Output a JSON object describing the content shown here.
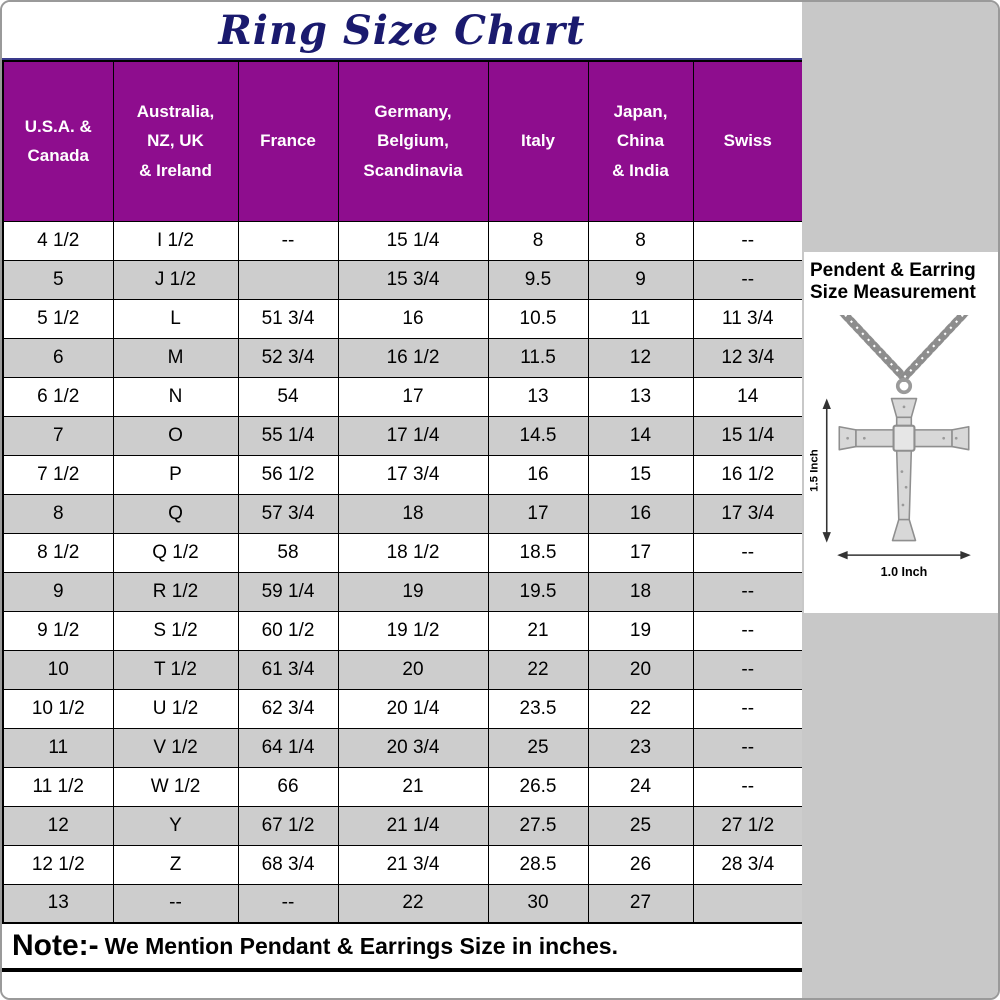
{
  "chart_data": {
    "type": "table",
    "title": "Ring Size Chart",
    "columns": [
      "U.S.A. &\nCanada",
      "Australia,\nNZ, UK\n& Ireland",
      "France",
      "Germany,\nBelgium,\nScandinavia",
      "Italy",
      "Japan,\nChina\n& India",
      "Swiss"
    ],
    "rows": [
      [
        "4 1/2",
        "I 1/2",
        "--",
        "15 1/4",
        "8",
        "8",
        "--"
      ],
      [
        "5",
        "J 1/2",
        "",
        "15 3/4",
        "9.5",
        "9",
        "--"
      ],
      [
        "5 1/2",
        "L",
        "51 3/4",
        "16",
        "10.5",
        "11",
        "11 3/4"
      ],
      [
        "6",
        "M",
        "52 3/4",
        "16 1/2",
        "11.5",
        "12",
        "12 3/4"
      ],
      [
        "6 1/2",
        "N",
        "54",
        "17",
        "13",
        "13",
        "14"
      ],
      [
        "7",
        "O",
        "55 1/4",
        "17 1/4",
        "14.5",
        "14",
        "15 1/4"
      ],
      [
        "7 1/2",
        "P",
        "56 1/2",
        "17 3/4",
        "16",
        "15",
        "16 1/2"
      ],
      [
        "8",
        "Q",
        "57 3/4",
        "18",
        "17",
        "16",
        "17 3/4"
      ],
      [
        "8 1/2",
        "Q 1/2",
        "58",
        "18 1/2",
        "18.5",
        "17",
        "--"
      ],
      [
        "9",
        "R 1/2",
        "59 1/4",
        "19",
        "19.5",
        "18",
        "--"
      ],
      [
        "9 1/2",
        "S 1/2",
        "60 1/2",
        "19 1/2",
        "21",
        "19",
        "--"
      ],
      [
        "10",
        "T 1/2",
        "61 3/4",
        "20",
        "22",
        "20",
        "--"
      ],
      [
        "10 1/2",
        "U 1/2",
        "62 3/4",
        "20 1/4",
        "23.5",
        "22",
        "--"
      ],
      [
        "11",
        "V 1/2",
        "64 1/4",
        "20 3/4",
        "25",
        "23",
        "--"
      ],
      [
        "11 1/2",
        "W 1/2",
        "66",
        "21",
        "26.5",
        "24",
        "--"
      ],
      [
        "12",
        "Y",
        "67 1/2",
        "21 1/4",
        "27.5",
        "25",
        "27 1/2"
      ],
      [
        "12 1/2",
        "Z",
        "68 3/4",
        "21 3/4",
        "28.5",
        "26",
        "28 3/4"
      ],
      [
        "13",
        "--",
        "--",
        "22",
        "30",
        "27",
        ""
      ]
    ]
  },
  "side_panel": {
    "heading_line1": "Pendent & Earring",
    "heading_line2": "Size Measurement",
    "height_label": "1.5 Inch",
    "width_label": "1.0 Inch"
  },
  "note": {
    "prefix": "Note:-",
    "text": "We Mention Pendant & Earrings Size in inches."
  },
  "colors": {
    "header_bg": "#8E0D8E",
    "row_alt": "#CDCDCD",
    "title_color": "#1A1A6E",
    "panel_gray": "#C8C8C8"
  }
}
